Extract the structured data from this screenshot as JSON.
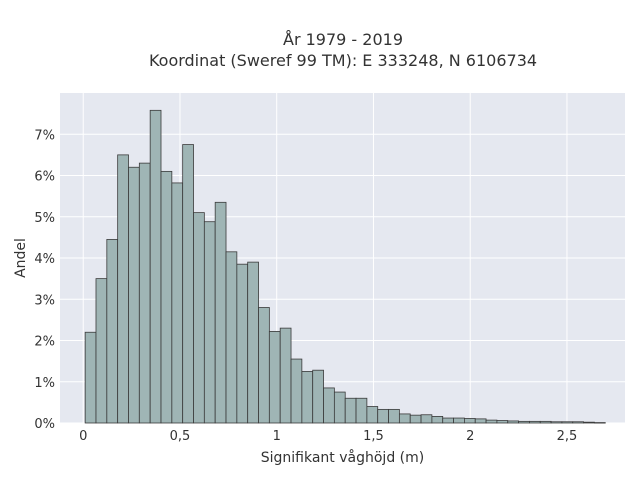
{
  "chart_data": {
    "type": "bar",
    "title_lines": [
      "År 1979 - 2019",
      "Koordinat (Sweref 99 TM): E 333248, N 6106734"
    ],
    "xlabel": "Signifikant våghöjd (m)",
    "ylabel": "Andel",
    "xlim": [
      -0.12,
      2.8
    ],
    "ylim": [
      0,
      0.08
    ],
    "x_ticks": [
      0,
      0.5,
      1,
      1.5,
      2,
      2.5
    ],
    "x_tick_labels": [
      "0",
      "0,5",
      "1",
      "1,5",
      "2",
      "2,5"
    ],
    "y_ticks": [
      0,
      0.01,
      0.02,
      0.03,
      0.04,
      0.05,
      0.06,
      0.07
    ],
    "y_tick_labels": [
      "0%",
      "1%",
      "2%",
      "3%",
      "4%",
      "5%",
      "6%",
      "7%"
    ],
    "bin_width": 0.056,
    "bin_start": 0.01,
    "values": [
      0.022,
      0.035,
      0.0445,
      0.065,
      0.062,
      0.063,
      0.0758,
      0.061,
      0.0582,
      0.0675,
      0.051,
      0.0488,
      0.0535,
      0.0415,
      0.0385,
      0.039,
      0.028,
      0.0222,
      0.023,
      0.0155,
      0.0125,
      0.0128,
      0.0085,
      0.0075,
      0.006,
      0.006,
      0.004,
      0.0033,
      0.0033,
      0.0022,
      0.0019,
      0.002,
      0.0016,
      0.0012,
      0.0012,
      0.0011,
      0.001,
      0.0007,
      0.0006,
      0.0005,
      0.0004,
      0.0004,
      0.0004,
      0.0003,
      0.0003,
      0.0003,
      0.0002,
      0.0001
    ],
    "colors": {
      "bar_fill": "#9fb5b5",
      "bar_stroke": "#3a3a3a",
      "plot_bg": "#e5e8f0",
      "grid": "#ffffff"
    },
    "grid": true
  }
}
